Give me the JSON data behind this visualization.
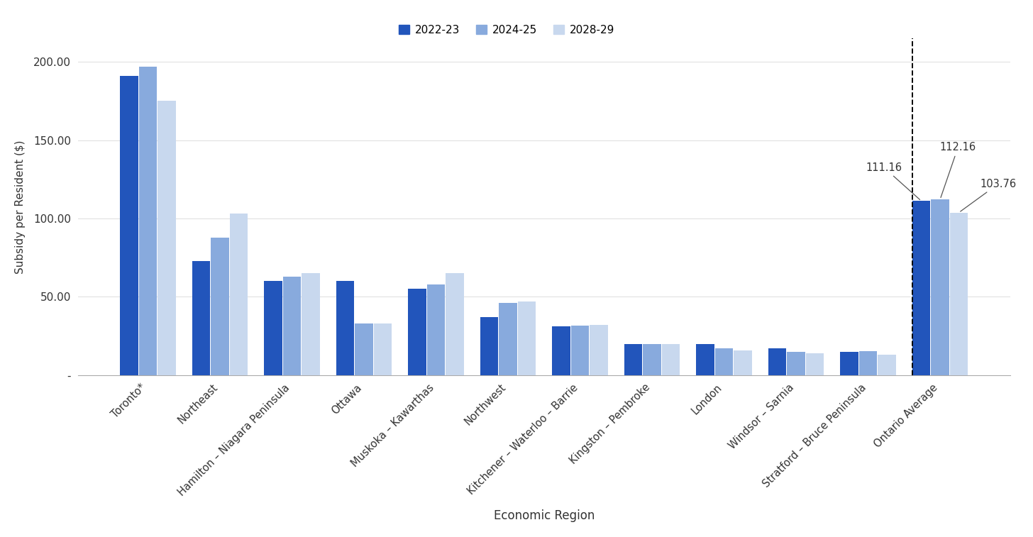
{
  "categories": [
    "Toronto*",
    "Northeast",
    "Hamilton – Niagara Peninsula",
    "Ottawa",
    "Muskoka – Kawarthas",
    "Northwest",
    "Kitchener – Waterloo – Barrie",
    "Kingston – Pembroke",
    "London",
    "Windsor – Sarnia",
    "Stratford – Bruce Peninsula",
    "Ontario Average"
  ],
  "series": {
    "2022-23": [
      191.0,
      73.0,
      60.0,
      60.0,
      55.0,
      37.0,
      31.0,
      20.0,
      20.0,
      17.0,
      15.0,
      111.16
    ],
    "2024-25": [
      197.0,
      88.0,
      63.0,
      33.0,
      58.0,
      46.0,
      31.5,
      20.0,
      17.0,
      15.0,
      15.5,
      112.16
    ],
    "2028-29": [
      175.0,
      103.0,
      65.0,
      33.0,
      65.0,
      47.0,
      32.0,
      20.0,
      16.0,
      14.0,
      13.0,
      103.76
    ]
  },
  "colors": {
    "2022-23": "#2255BB",
    "2024-25": "#88AADD",
    "2028-29": "#C8D8EE"
  },
  "ylabel": "Subsidy per Resident ($)",
  "xlabel": "Economic Region",
  "ylim": [
    0,
    215
  ],
  "yticks": [
    0,
    50.0,
    100.0,
    150.0,
    200.0
  ],
  "ytick_labels": [
    "-",
    "50.00",
    "100.00",
    "150.00",
    "200.00"
  ],
  "dashed_line_x": 10.62,
  "background_color": "#FFFFFF",
  "bar_width": 0.26,
  "ontario_vals": [
    111.16,
    112.16,
    103.76
  ],
  "ontario_labels": [
    "111.16",
    "112.16",
    "103.76"
  ]
}
